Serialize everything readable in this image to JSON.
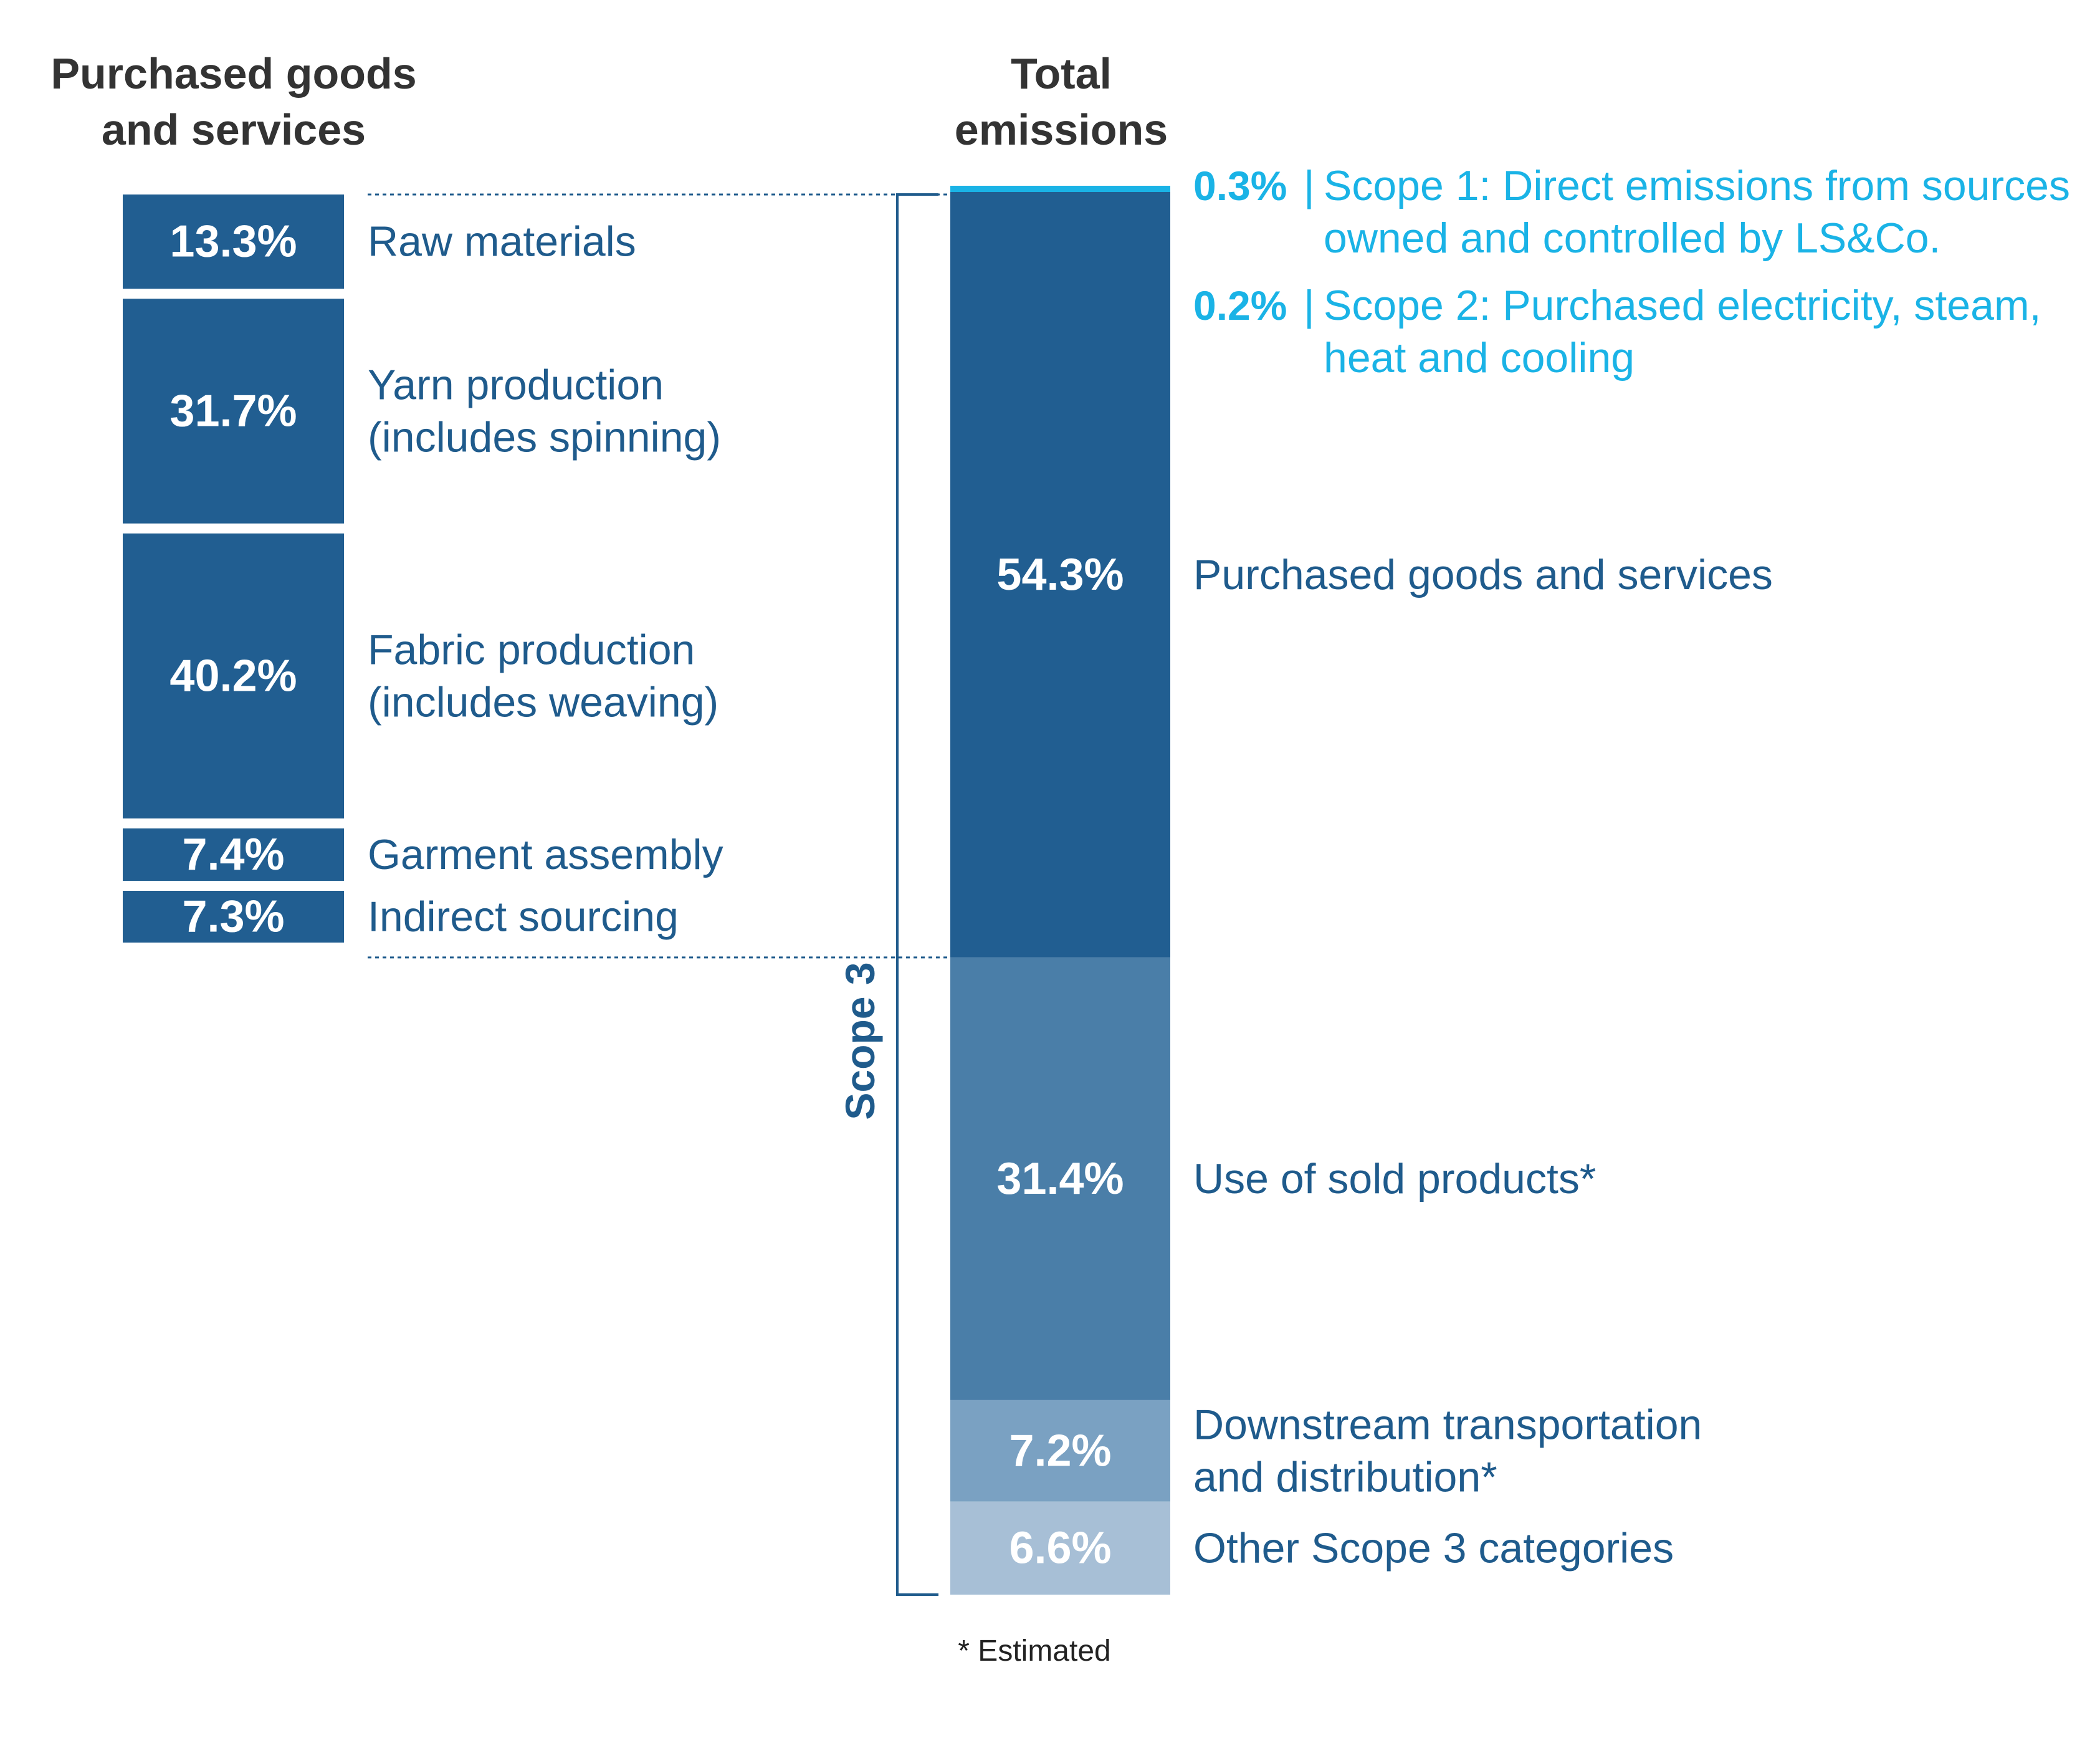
{
  "chart_data": [
    {
      "type": "bar",
      "title": "Purchased goods and services",
      "title_lines": [
        "Purchased goods",
        "and services"
      ],
      "categories": [
        "Raw materials",
        "Yarn production (includes spinning)",
        "Fabric production (includes weaving)",
        "Garment assembly",
        "Indirect sourcing"
      ],
      "values": [
        13.3,
        31.7,
        40.2,
        7.4,
        7.3
      ],
      "value_labels": [
        "13.3%",
        "31.7%",
        "40.2%",
        "7.4%",
        "7.3%"
      ],
      "label_lines": [
        [
          "Raw materials"
        ],
        [
          "Yarn production",
          "(includes spinning)"
        ],
        [
          "Fabric production",
          "(includes weaving)"
        ],
        [
          "Garment assembly"
        ],
        [
          "Indirect sourcing"
        ]
      ],
      "stacked": true,
      "color": "#215e91"
    },
    {
      "type": "bar",
      "title": "Total emissions",
      "title_lines": [
        "Total",
        "emissions"
      ],
      "categories": [
        "Scope 1: Direct emissions from sources owned and controlled by LS&Co.",
        "Scope 2: Purchased electricity, steam, heat and cooling",
        "Purchased goods and services",
        "Use of sold products*",
        "Downstream transportation and distribution*",
        "Other Scope 3 categories"
      ],
      "values": [
        0.3,
        0.2,
        54.3,
        31.4,
        7.2,
        6.6
      ],
      "value_labels": [
        "0.3%",
        "0.2%",
        "54.3%",
        "31.4%",
        "7.2%",
        "6.6%"
      ],
      "stacked": true,
      "scope_items": [
        {
          "pct": "0.3%",
          "sep": "|",
          "lines": [
            "Scope 1: Direct emissions from sources",
            "owned and controlled by LS&Co."
          ]
        },
        {
          "pct": "0.2%",
          "sep": "|",
          "lines": [
            "Scope 2: Purchased electricity, steam,",
            "heat and cooling"
          ]
        }
      ],
      "scope3_segments": [
        {
          "value": 54.3,
          "label": "54.3%",
          "lines": [
            "Purchased goods and services"
          ],
          "color": "#215e91"
        },
        {
          "value": 31.4,
          "label": "31.4%",
          "lines": [
            "Use of sold products*"
          ],
          "color": "#4a7ea8"
        },
        {
          "value": 7.2,
          "label": "7.2%",
          "lines": [
            "Downstream transportation",
            "and distribution*"
          ],
          "color": "#7aa1c2"
        },
        {
          "value": 6.6,
          "label": "6.6%",
          "lines": [
            "Other Scope 3 categories"
          ],
          "color": "#a7bfd6"
        }
      ],
      "scope_top_color": "#1ab3e6",
      "bracket_label": "Scope 3"
    }
  ],
  "footnote": "* Estimated"
}
